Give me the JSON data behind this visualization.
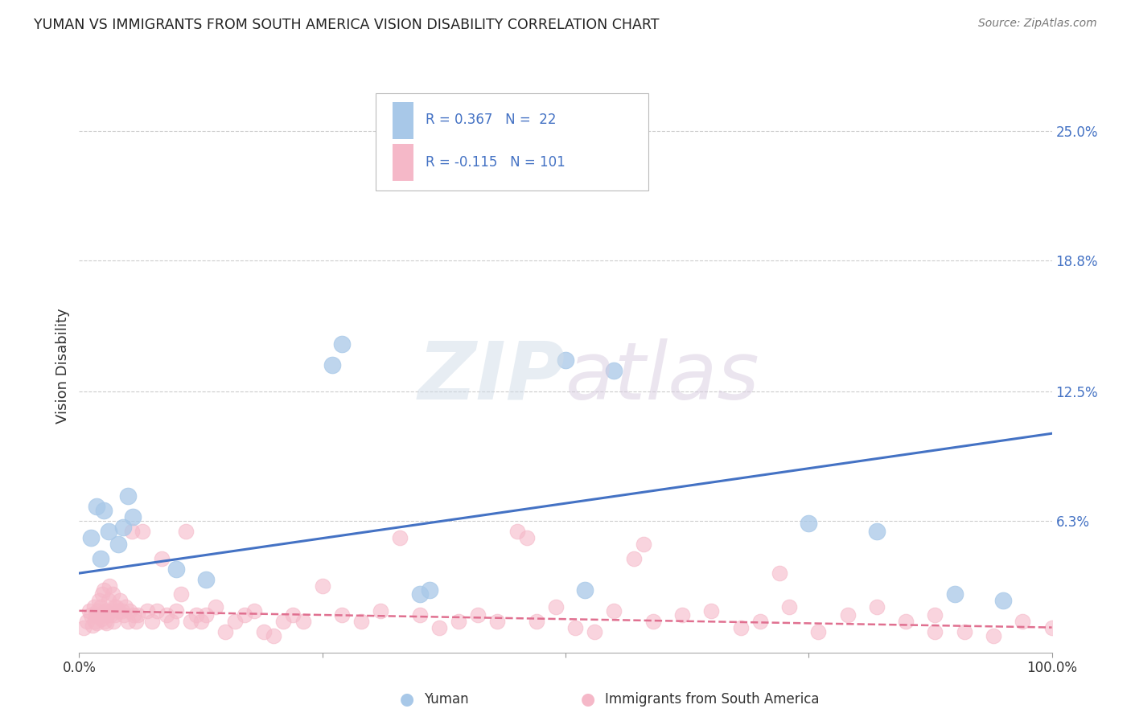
{
  "title": "YUMAN VS IMMIGRANTS FROM SOUTH AMERICA VISION DISABILITY CORRELATION CHART",
  "source": "Source: ZipAtlas.com",
  "ylabel": "Vision Disability",
  "y_tick_labels_right": [
    "6.3%",
    "12.5%",
    "18.8%",
    "25.0%"
  ],
  "y_tick_vals": [
    6.3,
    12.5,
    18.8,
    25.0
  ],
  "ylim": [
    0,
    27.5
  ],
  "xlim": [
    0,
    100
  ],
  "blue_color": "#a8c8e8",
  "pink_color": "#f5b8c8",
  "blue_line_color": "#4472c4",
  "pink_line_color": "#e07090",
  "label_blue": "Yuman",
  "label_pink": "Immigrants from South America",
  "blue_trend_x0": 0,
  "blue_trend_y0": 3.8,
  "blue_trend_x1": 100,
  "blue_trend_y1": 10.5,
  "pink_trend_x0": 0,
  "pink_trend_y0": 2.0,
  "pink_trend_x1": 100,
  "pink_trend_y1": 1.2,
  "blue_x": [
    1.2,
    1.8,
    2.5,
    3.0,
    2.2,
    4.0,
    5.0,
    4.5,
    5.5,
    13.0,
    26.0,
    27.0,
    35.0,
    36.0,
    52.0,
    55.0,
    75.0,
    82.0,
    90.0,
    95.0,
    50.0,
    10.0
  ],
  "blue_y": [
    5.5,
    7.0,
    6.8,
    5.8,
    4.5,
    5.2,
    7.5,
    6.0,
    6.5,
    3.5,
    13.8,
    14.8,
    2.8,
    3.0,
    3.0,
    13.5,
    6.2,
    5.8,
    2.8,
    2.5,
    14.0,
    4.0
  ],
  "pink_x": [
    0.5,
    0.8,
    1.0,
    1.2,
    1.4,
    1.5,
    1.6,
    1.7,
    1.8,
    1.9,
    2.0,
    2.1,
    2.2,
    2.3,
    2.4,
    2.5,
    2.6,
    2.7,
    2.8,
    2.9,
    3.0,
    3.1,
    3.2,
    3.3,
    3.4,
    3.5,
    3.6,
    3.7,
    3.8,
    4.0,
    4.2,
    4.4,
    4.6,
    4.8,
    5.0,
    5.2,
    5.4,
    5.6,
    5.8,
    6.0,
    6.5,
    7.0,
    7.5,
    8.0,
    8.5,
    9.0,
    9.5,
    10.0,
    10.5,
    11.0,
    11.5,
    12.0,
    12.5,
    13.0,
    14.0,
    15.0,
    16.0,
    17.0,
    18.0,
    19.0,
    20.0,
    21.0,
    22.0,
    23.0,
    25.0,
    27.0,
    29.0,
    31.0,
    33.0,
    35.0,
    37.0,
    39.0,
    41.0,
    43.0,
    45.0,
    47.0,
    49.0,
    51.0,
    53.0,
    55.0,
    57.0,
    59.0,
    62.0,
    65.0,
    68.0,
    70.0,
    73.0,
    76.0,
    79.0,
    82.0,
    85.0,
    88.0,
    91.0,
    94.0,
    97.0,
    100.0,
    46.0,
    58.0,
    72.0,
    88.0
  ],
  "pink_y": [
    1.2,
    1.5,
    2.0,
    1.8,
    1.3,
    2.2,
    1.5,
    1.8,
    1.4,
    2.0,
    2.5,
    1.8,
    2.2,
    1.6,
    2.8,
    3.0,
    1.5,
    2.0,
    1.4,
    1.8,
    2.5,
    3.2,
    1.8,
    2.0,
    2.8,
    1.5,
    2.2,
    1.8,
    2.2,
    2.0,
    2.5,
    2.0,
    1.8,
    2.2,
    1.5,
    2.0,
    5.8,
    1.8,
    1.5,
    1.8,
    5.8,
    2.0,
    1.5,
    2.0,
    4.5,
    1.8,
    1.5,
    2.0,
    2.8,
    5.8,
    1.5,
    1.8,
    1.5,
    1.8,
    2.2,
    1.0,
    1.5,
    1.8,
    2.0,
    1.0,
    0.8,
    1.5,
    1.8,
    1.5,
    3.2,
    1.8,
    1.5,
    2.0,
    5.5,
    1.8,
    1.2,
    1.5,
    1.8,
    1.5,
    5.8,
    1.5,
    2.2,
    1.2,
    1.0,
    2.0,
    4.5,
    1.5,
    1.8,
    2.0,
    1.2,
    1.5,
    2.2,
    1.0,
    1.8,
    2.2,
    1.5,
    1.8,
    1.0,
    0.8,
    1.5,
    1.2,
    5.5,
    5.2,
    3.8,
    1.0
  ]
}
